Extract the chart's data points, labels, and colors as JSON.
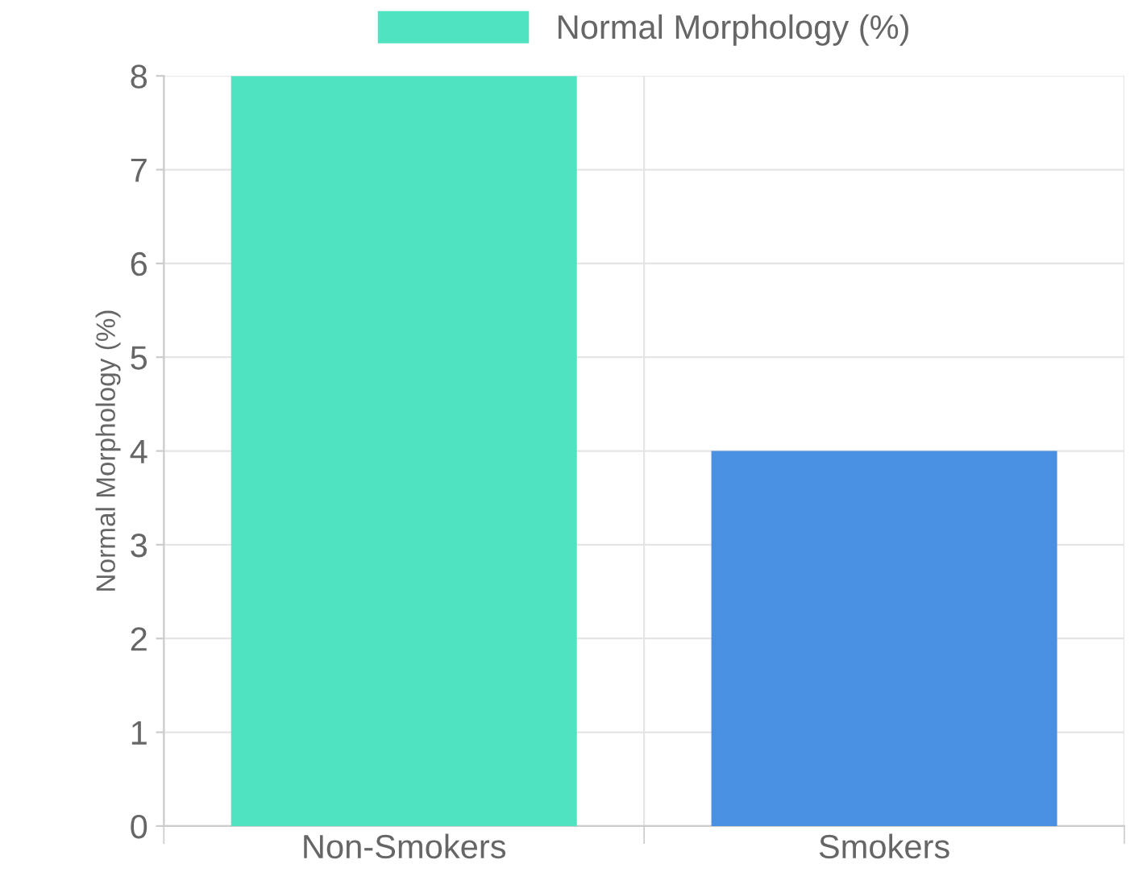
{
  "chart_data": {
    "type": "bar",
    "ylabel": "Normal Morphology (%)",
    "categories": [
      "Non-Smokers",
      "Smokers"
    ],
    "series": [
      {
        "name": "Normal Morphology (%)",
        "color": "#50e3c2",
        "colors": [
          "#50e3c2",
          "#4a90e2"
        ],
        "values": [
          8,
          4
        ]
      }
    ],
    "ylim": [
      0,
      8
    ],
    "yticks": [
      0,
      1,
      2,
      3,
      4,
      5,
      6,
      7,
      8
    ],
    "grid": true,
    "legend": "top"
  }
}
